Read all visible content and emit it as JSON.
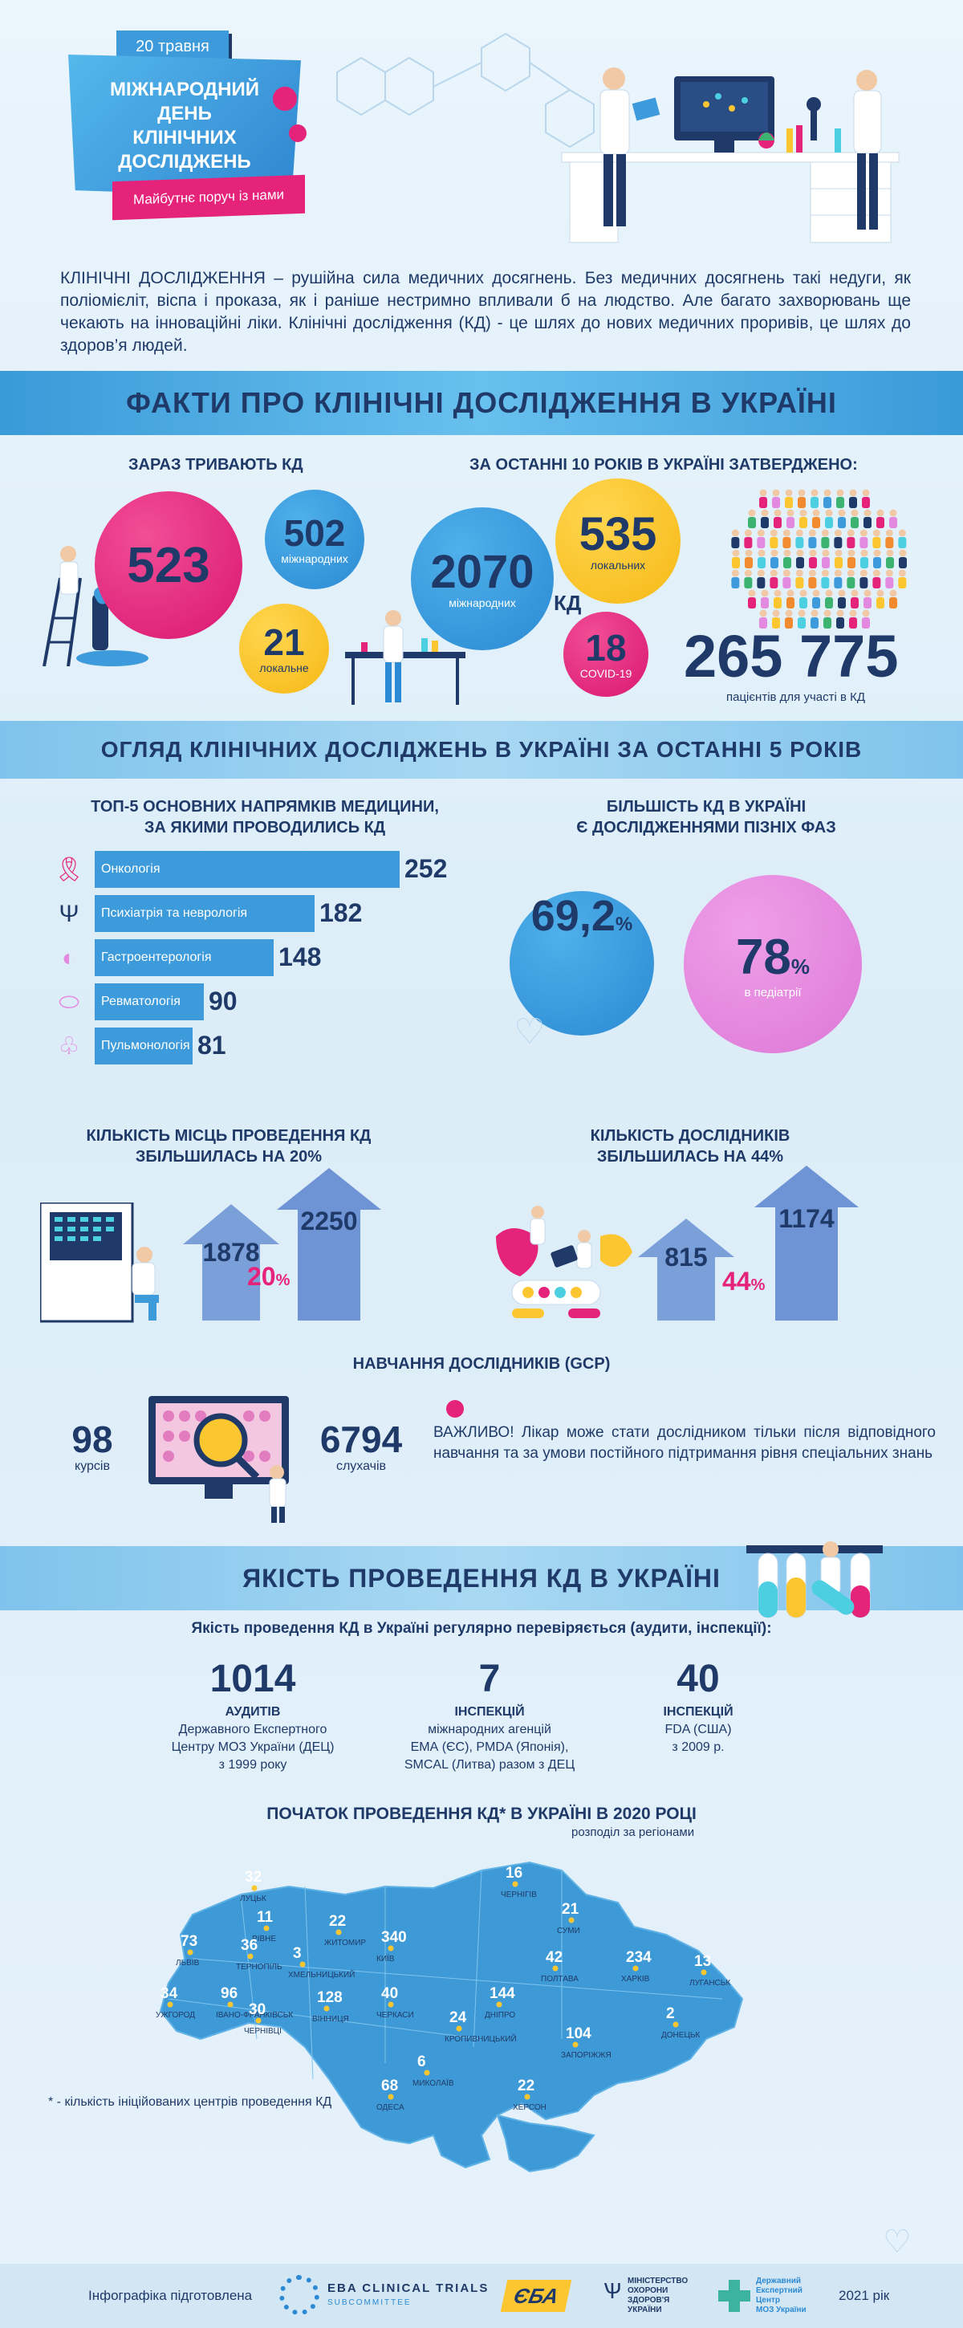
{
  "header": {
    "date": "20 травня",
    "title_lines": [
      "МІЖНАРОДНИЙ",
      "ДЕНЬ",
      "КЛІНІЧНИХ",
      "ДОСЛІДЖЕНЬ"
    ],
    "subtitle": "Майбутнє поруч із нами"
  },
  "intro": "КЛІНІЧНІ ДОСЛІДЖЕННЯ – рушійна сила медичних досягнень. Без медичних досягнень такі недуги, як поліомієліт, віспа і проказа, як і раніше нестримно впливали б на людство. Але багато захворювань ще чекають на інноваційні ліки. Клінічні дослідження (КД) - це шлях до нових медичних проривів, це шлях до здоров’я людей.",
  "facts": {
    "heading": "ФАКТИ ПРО КЛІНІЧНІ ДОСЛІДЖЕННЯ В УКРАЇНІ",
    "ongoing_title": "ЗАРАЗ ТРИВАЮТЬ КД",
    "ongoing_total": "523",
    "ongoing_intl": "502",
    "ongoing_intl_label": "міжнародних",
    "ongoing_local": "21",
    "ongoing_local_label": "локальне",
    "approved_title": "ЗА ОСТАННІ 10 РОКІВ В УКРАЇНІ ЗАТВЕРДЖЕНО:",
    "approved_intl": "2070",
    "approved_intl_label": "міжнародних",
    "approved_local": "535",
    "approved_local_label": "локальних",
    "approved_unit": "КД",
    "approved_covid": "18",
    "approved_covid_label": "COVID-19",
    "patients": "265 775",
    "patients_label": "пацієнтів для участі в КД"
  },
  "overview": {
    "heading": "ОГЛЯД КЛІНІЧНИХ ДОСЛІДЖЕНЬ В УКРАЇНІ ЗА ОСТАННІ 5 РОКІВ",
    "top5_title_1": "ТОП-5 ОСНОВНИХ НАПРЯМКІВ МЕДИЦИНИ,",
    "top5_title_2": "ЗА ЯКИМИ ПРОВОДИЛИСЬ КД",
    "late_title_1": "БІЛЬШІСТЬ КД В УКРАЇНІ",
    "late_title_2": "Є ДОСЛІДЖЕННЯМИ ПІЗНІХ ФАЗ",
    "late_pct": "69,2",
    "late_pct_sign": "%",
    "pediatric_pct": "78",
    "pediatric_pct_sign": "%",
    "pediatric_label": "в педіатрії",
    "sites_title_1": "КІЛЬКІСТЬ МІСЦЬ ПРОВЕДЕННЯ КД",
    "sites_title_2": "ЗБІЛЬШИЛАСЬ НА 20%",
    "sites_before": "1878",
    "sites_after": "2250",
    "sites_growth": "20",
    "investigators_title_1": "КІЛЬКІСТЬ ДОСЛІДНИКІВ",
    "investigators_title_2": "ЗБІЛЬШИЛАСЬ НА 44%",
    "inv_before": "815",
    "inv_after": "1174",
    "inv_growth": "44",
    "percent_sign": "%",
    "gcp_title": "НАВЧАННЯ ДОСЛІДНИКІВ (GCP)",
    "courses": "98",
    "courses_label": "курсів",
    "listeners": "6794",
    "listeners_label": "слухачів",
    "important": "ВАЖЛИВО! Лікар може стати дослідником тільки після відповідного навчання та за умови постійного підтримання рівня спеціальних знань"
  },
  "chart_data": {
    "type": "bar",
    "title": "ТОП-5 ОСНОВНИХ НАПРЯМКІВ МЕДИЦИНИ, ЗА ЯКИМИ ПРОВОДИЛИСЬ КД",
    "categories": [
      "Онкологія",
      "Психіатрія та неврологія",
      "Гастроентерологія",
      "Ревматологія",
      "Пульмонологія"
    ],
    "values": [
      252,
      182,
      148,
      90,
      81
    ],
    "icons": [
      "ribbon-icon",
      "psi-icon",
      "stomach-icon",
      "joint-icon",
      "lungs-icon"
    ],
    "orientation": "horizontal",
    "bar_color": "#3d9bdc"
  },
  "quality": {
    "heading": "ЯКІСТЬ ПРОВЕДЕННЯ КД В УКРАЇНІ",
    "intro": "Якість проведення КД в Україні регулярно перевіряється (аудити, інспекції):",
    "c1_num": "1014",
    "c1_l1": "АУДИТІВ",
    "c1_l2": "Державного Експертного",
    "c1_l3": "Центру МОЗ України (ДЕЦ)",
    "c1_l4": "з 1999 року",
    "c2_num": "7",
    "c2_l1": "ІНСПЕКЦІЙ",
    "c2_l2": "міжнародних агенцій",
    "c2_l3": "ЕМА (ЄС), PMDA (Японія),",
    "c2_l4": "SMCAL (Литва) разом з ДЕЦ",
    "c3_num": "40",
    "c3_l1": "ІНСПЕКЦІЙ",
    "c3_l2": "FDA (США)",
    "c3_l3": "з 2009 р."
  },
  "map": {
    "title": "ПОЧАТОК ПРОВЕДЕННЯ КД* В УКРАЇНІ В 2020 РОЦІ",
    "subtitle": "розподіл за регіонами",
    "footnote": "* - кількість ініційованих центрів проведення КД",
    "regions": [
      {
        "city": "ЛУЦЬК",
        "value": "32"
      },
      {
        "city": "РІВНЕ",
        "value": "11"
      },
      {
        "city": "ЛЬВІВ",
        "value": "73"
      },
      {
        "city": "ТЕРНОПІЛЬ",
        "value": "36"
      },
      {
        "city": "УЖГОРОД",
        "value": "34"
      },
      {
        "city": "ІВАНО-ФРАНКІВСЬК",
        "value": "96"
      },
      {
        "city": "ЧЕРНІВЦІ",
        "value": "30"
      },
      {
        "city": "ХМЕЛЬНИЦЬКИЙ",
        "value": "3"
      },
      {
        "city": "ЖИТОМИР",
        "value": "22"
      },
      {
        "city": "ВІННИЦЯ",
        "value": "128"
      },
      {
        "city": "КИЇВ",
        "value": "340"
      },
      {
        "city": "ЧЕРНІГІВ",
        "value": "16"
      },
      {
        "city": "СУМИ",
        "value": "21"
      },
      {
        "city": "ПОЛТАВА",
        "value": "42"
      },
      {
        "city": "ХАРКІВ",
        "value": "234"
      },
      {
        "city": "ЛУГАНСЬК",
        "value": "13"
      },
      {
        "city": "ЧЕРКАСИ",
        "value": "40"
      },
      {
        "city": "КРОПИВНИЦЬКИЙ",
        "value": "24"
      },
      {
        "city": "ДНІПРО",
        "value": "144"
      },
      {
        "city": "ДОНЕЦЬК",
        "value": "2"
      },
      {
        "city": "ЗАПОРІЖЖЯ",
        "value": "104"
      },
      {
        "city": "МИКОЛАЇВ",
        "value": "6"
      },
      {
        "city": "ОДЕСА",
        "value": "68"
      },
      {
        "city": "ХЕРСОН",
        "value": "22"
      }
    ]
  },
  "footer": {
    "prepared": "Інфографіка підготовлена",
    "eba_line1": "EBA CLINICAL TRIALS",
    "eba_line2": "SUBCOMMITTEE",
    "eba_logo": "ЄБА",
    "moz_line1": "МІНІСТЕРСТВО",
    "moz_line2": "ОХОРОНИ",
    "moz_line3": "ЗДОРОВ'Я",
    "moz_line4": "УКРАЇНИ",
    "dec_line1": "Державний",
    "dec_line2": "Експертний",
    "dec_line3": "Центр",
    "dec_line4": "МОЗ України",
    "year": "2021 рік"
  },
  "colors": {
    "navy": "#1f3a68",
    "blue": "#3d9bdc",
    "pink": "#e6237a",
    "yellow": "#fcc631",
    "violet": "#e38ae0",
    "band": "#4aa8e0",
    "map": "#3e9ad6",
    "arrow": "#7b9fd9"
  }
}
